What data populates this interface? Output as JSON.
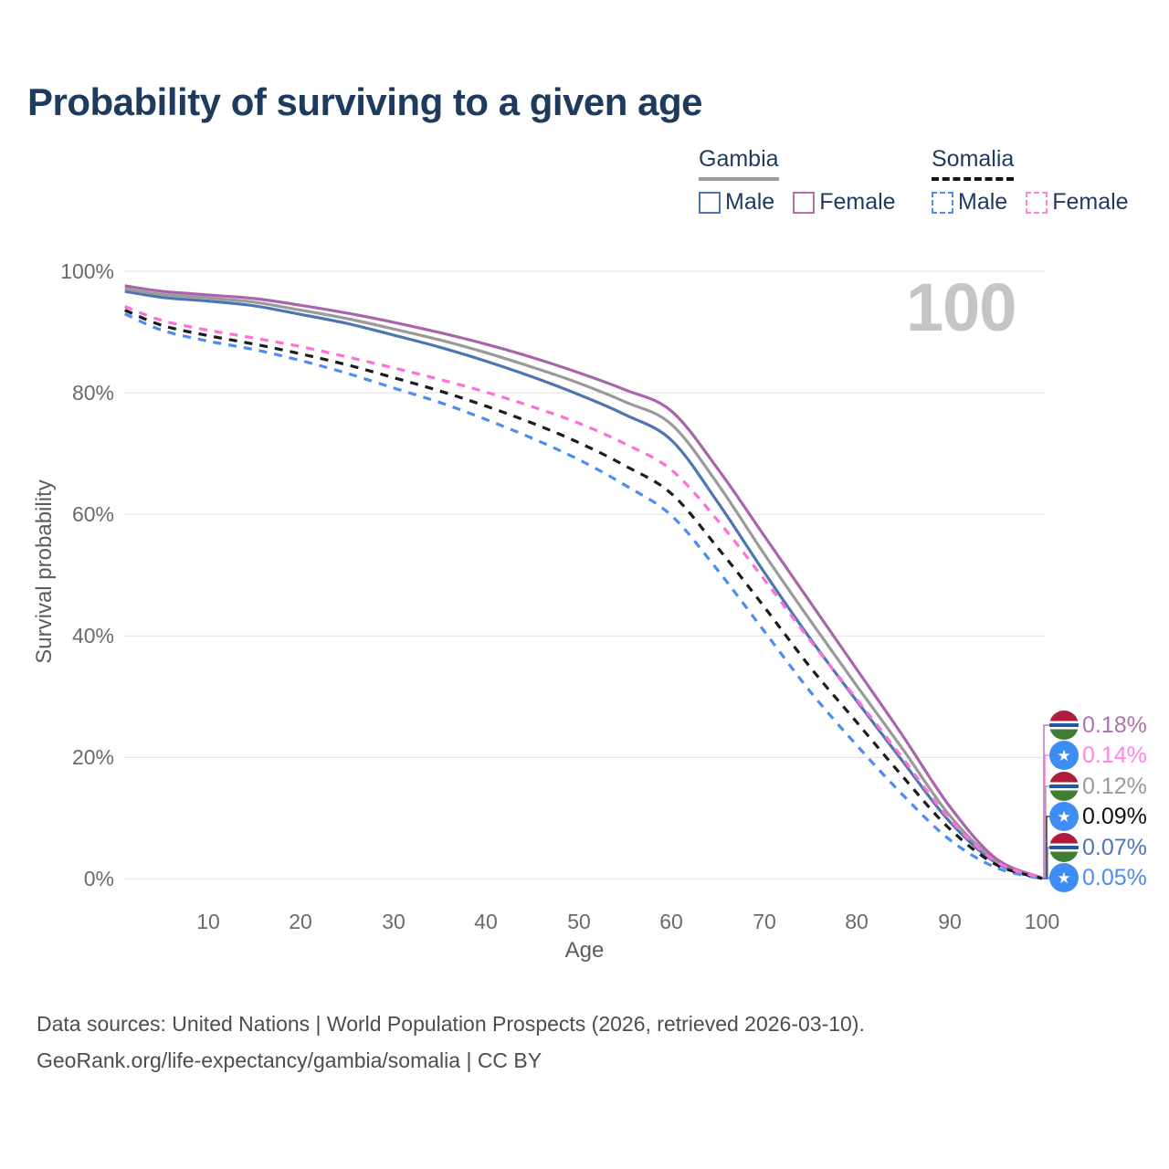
{
  "title": "Probability of surviving to a given age",
  "watermark_age": "100",
  "legend": {
    "groups": [
      {
        "country": "Gambia",
        "line_style": "solid",
        "underline_color": "#9a9a9a",
        "items": [
          {
            "label": "Male",
            "color": "#4c76b2"
          },
          {
            "label": "Female",
            "color": "#b272ae"
          }
        ]
      },
      {
        "country": "Somalia",
        "line_style": "dashed",
        "underline_color": "#141414",
        "items": [
          {
            "label": "Male",
            "color": "#4b8df0"
          },
          {
            "label": "Female",
            "color": "#ff85dc"
          }
        ]
      }
    ]
  },
  "axes": {
    "x_label": "Age",
    "y_label": "Survival probability"
  },
  "chart_data": {
    "type": "line",
    "title": "Probability of surviving to a given age",
    "xlabel": "Age",
    "ylabel": "Survival probability",
    "xlim": [
      1,
      100
    ],
    "ylim": [
      0,
      100
    ],
    "grid": "horizontal",
    "legend_position": "top-right",
    "x_ticks": [
      10,
      20,
      30,
      40,
      50,
      60,
      70,
      80,
      90,
      100
    ],
    "y_ticks": [
      "0%",
      "20%",
      "40%",
      "60%",
      "80%",
      "100%"
    ],
    "y_grid_values": [
      0,
      20,
      40,
      60,
      80,
      100
    ],
    "ages": [
      1,
      5,
      10,
      15,
      20,
      25,
      30,
      35,
      40,
      45,
      50,
      55,
      60,
      65,
      70,
      75,
      80,
      85,
      90,
      95,
      100
    ],
    "series": [
      {
        "name": "Gambia Female",
        "country": "Gambia",
        "sex": "Female",
        "style": "solid",
        "color": "#a964ad",
        "end_label": "0.18%",
        "values": [
          97.6,
          96.7,
          96.1,
          95.5,
          94.4,
          93.1,
          91.6,
          89.9,
          88.0,
          85.8,
          83.3,
          80.5,
          77.0,
          67.5,
          56.5,
          45.5,
          34.5,
          23.5,
          12.0,
          3.4,
          0.18
        ]
      },
      {
        "name": "Gambia Both sexes",
        "country": "Gambia",
        "sex": "All",
        "style": "solid",
        "color": "#9a9a9a",
        "end_label": "0.12%",
        "values": [
          97.1,
          96.2,
          95.6,
          94.9,
          93.6,
          92.2,
          90.5,
          88.7,
          86.6,
          84.2,
          81.6,
          78.5,
          74.8,
          65.0,
          53.5,
          42.5,
          31.8,
          21.3,
          10.5,
          3.0,
          0.12
        ]
      },
      {
        "name": "Gambia Male",
        "country": "Gambia",
        "sex": "Male",
        "style": "solid",
        "color": "#4c76b2",
        "end_label": "0.07%",
        "values": [
          96.7,
          95.7,
          95.1,
          94.3,
          92.9,
          91.4,
          89.5,
          87.5,
          85.2,
          82.6,
          79.7,
          76.4,
          72.2,
          62.0,
          50.5,
          39.5,
          29.3,
          19.3,
          9.5,
          2.7,
          0.07
        ]
      },
      {
        "name": "Somalia Female",
        "country": "Somalia",
        "sex": "Female",
        "style": "dashed",
        "color": "#ff6fd8",
        "end_label": "0.14%",
        "values": [
          94.2,
          91.9,
          90.3,
          89.0,
          87.6,
          85.9,
          84.1,
          82.2,
          80.1,
          77.7,
          75.0,
          71.6,
          67.3,
          59.0,
          49.3,
          39.2,
          29.6,
          19.8,
          9.9,
          2.9,
          0.14
        ]
      },
      {
        "name": "Somalia Both sexes",
        "country": "Somalia",
        "sex": "All",
        "style": "dashed",
        "color": "#1c1c1c",
        "end_label": "0.09%",
        "values": [
          93.6,
          91.1,
          89.4,
          88.0,
          86.4,
          84.6,
          82.5,
          80.3,
          77.8,
          75.0,
          71.8,
          68.0,
          63.4,
          54.5,
          44.8,
          34.8,
          25.8,
          16.8,
          8.3,
          2.4,
          0.09
        ]
      },
      {
        "name": "Somalia Male",
        "country": "Somalia",
        "sex": "Male",
        "style": "dashed",
        "color": "#4b8df0",
        "end_label": "0.05%",
        "values": [
          93.0,
          90.3,
          88.5,
          87.1,
          85.3,
          83.2,
          80.8,
          78.4,
          75.6,
          72.5,
          69.0,
          64.8,
          59.8,
          50.8,
          40.8,
          30.8,
          22.0,
          13.8,
          6.5,
          1.9,
          0.05
        ]
      }
    ]
  },
  "end_labels": [
    {
      "flag": "gambia",
      "value": "0.18%",
      "color": "#b070b0"
    },
    {
      "flag": "somalia",
      "value": "0.14%",
      "color": "#ff85e0"
    },
    {
      "flag": "gambia",
      "value": "0.12%",
      "color": "#9a9a9a"
    },
    {
      "flag": "somalia",
      "value": "0.09%",
      "color": "#111111"
    },
    {
      "flag": "gambia",
      "value": "0.07%",
      "color": "#4c76b2"
    },
    {
      "flag": "somalia",
      "value": "0.05%",
      "color": "#4b8df0"
    }
  ],
  "footer": {
    "line1": "Data sources: United Nations | World Population Prospects (2026, retrieved 2026-03-10).",
    "line2": "GeoRank.org/life-expectancy/gambia/somalia | CC BY"
  }
}
